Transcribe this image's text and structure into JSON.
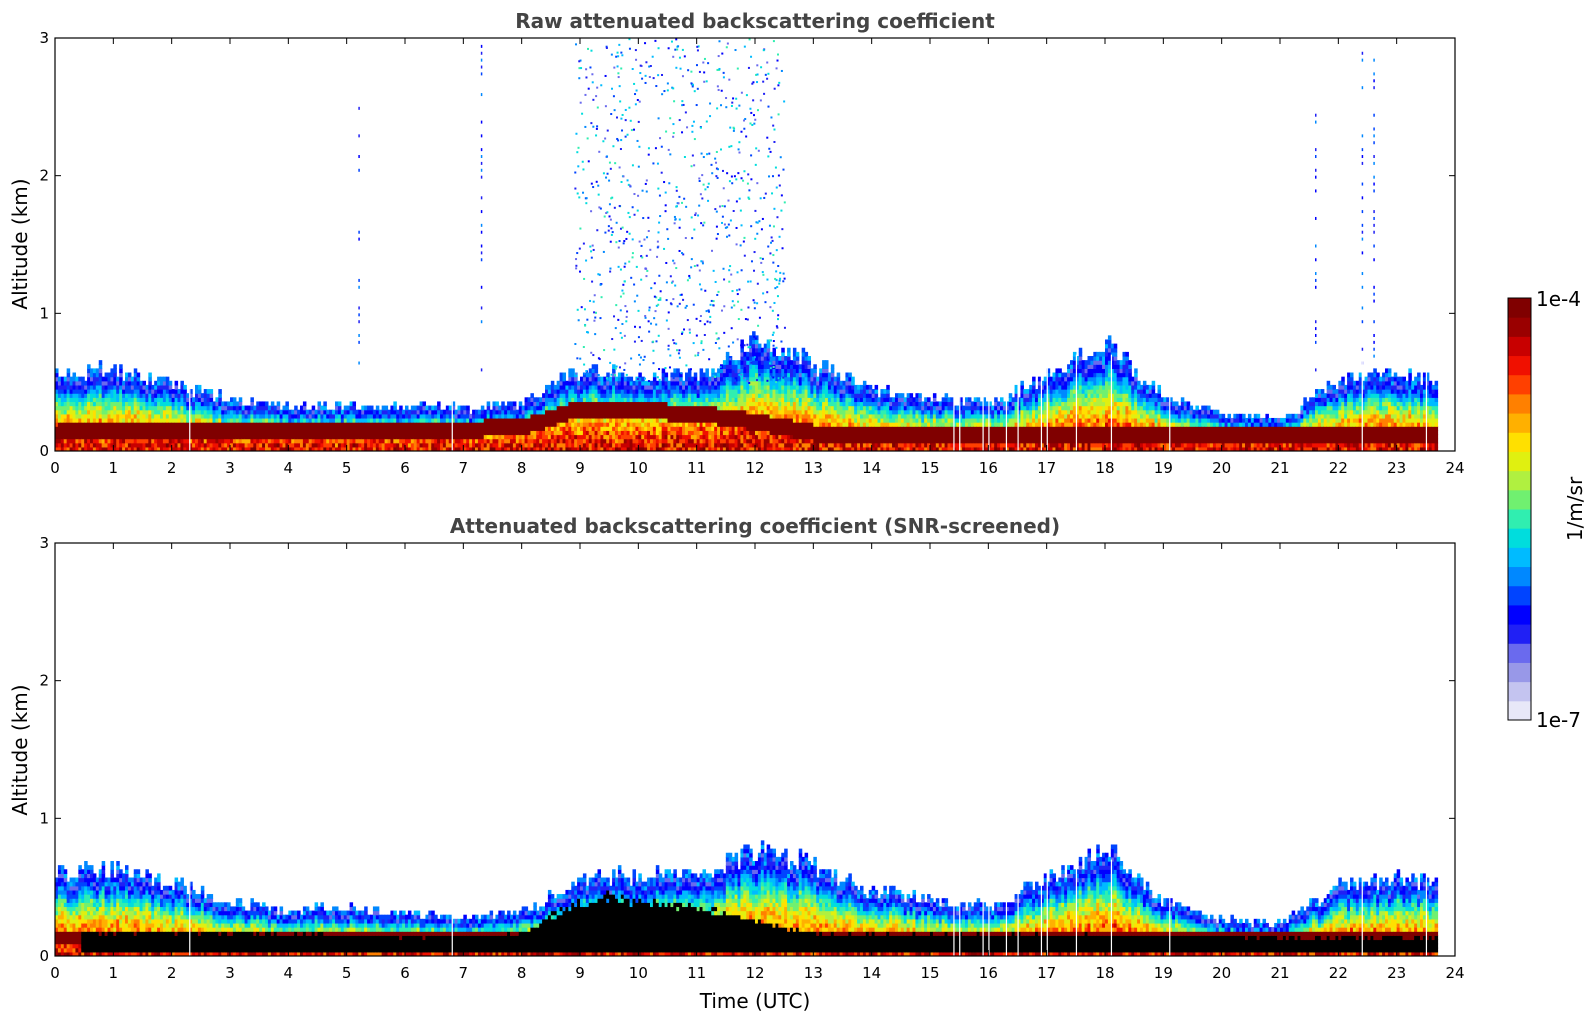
{
  "chart_data": [
    {
      "type": "heatmap",
      "title": "Raw attenuated backscattering coefficient",
      "xlabel": "",
      "ylabel": "Altitude (km)",
      "xlim": [
        0,
        24
      ],
      "ylim": [
        0,
        3
      ],
      "xticks": [
        "0",
        "1",
        "2",
        "3",
        "4",
        "5",
        "6",
        "7",
        "8",
        "9",
        "10",
        "11",
        "12",
        "13",
        "14",
        "15",
        "16",
        "17",
        "18",
        "19",
        "20",
        "21",
        "22",
        "23",
        "24"
      ],
      "yticks": [
        "0",
        "1",
        "2",
        "3"
      ],
      "data_end_hour": 23.7,
      "layer_top_km": [
        [
          0,
          0.55
        ],
        [
          1,
          0.58
        ],
        [
          2,
          0.48
        ],
        [
          3,
          0.36
        ],
        [
          4,
          0.3
        ],
        [
          5,
          0.32
        ],
        [
          6,
          0.32
        ],
        [
          7,
          0.3
        ],
        [
          8,
          0.33
        ],
        [
          9,
          0.58
        ],
        [
          10,
          0.56
        ],
        [
          11,
          0.52
        ],
        [
          12,
          0.8
        ],
        [
          13,
          0.62
        ],
        [
          14,
          0.42
        ],
        [
          15,
          0.37
        ],
        [
          16,
          0.32
        ],
        [
          17,
          0.55
        ],
        [
          18,
          0.78
        ],
        [
          19,
          0.38
        ],
        [
          20,
          0.25
        ],
        [
          21,
          0.22
        ],
        [
          22,
          0.5
        ],
        [
          23,
          0.55
        ],
        [
          23.7,
          0.5
        ]
      ],
      "core_layer_km": [
        [
          0,
          0.12
        ],
        [
          2,
          0.13
        ],
        [
          4,
          0.14
        ],
        [
          6,
          0.13
        ],
        [
          8,
          0.16
        ],
        [
          9,
          0.3
        ],
        [
          10,
          0.28
        ],
        [
          11,
          0.26
        ],
        [
          12,
          0.2
        ],
        [
          13,
          0.12
        ],
        [
          14,
          0.1
        ],
        [
          16,
          0.1
        ],
        [
          18,
          0.1
        ],
        [
          20,
          0.1
        ],
        [
          22,
          0.1
        ],
        [
          23.7,
          0.1
        ]
      ],
      "noise_region_hours": [
        8.9,
        12.5
      ]
    },
    {
      "type": "heatmap",
      "title": "Attenuated backscattering coefficient (SNR-screened)",
      "xlabel": "Time (UTC)",
      "ylabel": "Altitude (km)",
      "xlim": [
        0,
        24
      ],
      "ylim": [
        0,
        3
      ],
      "xticks": [
        "0",
        "1",
        "2",
        "3",
        "4",
        "5",
        "6",
        "7",
        "8",
        "9",
        "10",
        "11",
        "12",
        "13",
        "14",
        "15",
        "16",
        "17",
        "18",
        "19",
        "20",
        "21",
        "22",
        "23",
        "24"
      ],
      "yticks": [
        "0",
        "1",
        "2",
        "3"
      ],
      "data_end_hour": 23.7,
      "layer_top_km": [
        [
          0,
          0.58
        ],
        [
          1,
          0.62
        ],
        [
          2,
          0.52
        ],
        [
          3,
          0.38
        ],
        [
          4,
          0.32
        ],
        [
          5,
          0.33
        ],
        [
          6,
          0.3
        ],
        [
          7,
          0.26
        ],
        [
          8,
          0.3
        ],
        [
          9,
          0.55
        ],
        [
          10,
          0.58
        ],
        [
          11,
          0.55
        ],
        [
          12,
          0.78
        ],
        [
          13,
          0.65
        ],
        [
          14,
          0.45
        ],
        [
          15,
          0.4
        ],
        [
          16,
          0.34
        ],
        [
          17,
          0.55
        ],
        [
          18,
          0.78
        ],
        [
          19,
          0.38
        ],
        [
          20,
          0.25
        ],
        [
          21,
          0.22
        ],
        [
          22,
          0.5
        ],
        [
          23,
          0.55
        ],
        [
          23.7,
          0.5
        ]
      ],
      "black_layer_km": [
        [
          0.4,
          0.16
        ],
        [
          2,
          0.16
        ],
        [
          4,
          0.15
        ],
        [
          6,
          0.13
        ],
        [
          8,
          0.14
        ],
        [
          8.7,
          0.33
        ],
        [
          9.5,
          0.42
        ],
        [
          10,
          0.38
        ],
        [
          11,
          0.34
        ],
        [
          12,
          0.24
        ],
        [
          13,
          0.15
        ],
        [
          14,
          0.14
        ],
        [
          16,
          0.14
        ],
        [
          18,
          0.14
        ],
        [
          20,
          0.13
        ],
        [
          22,
          0.12
        ],
        [
          23.7,
          0.12
        ]
      ]
    }
  ],
  "colorbar": {
    "label": "1/m/sr",
    "max_label": "1e-4",
    "min_label": "1e-7",
    "colors": [
      "#e8e8f8",
      "#c4c4f0",
      "#9898e8",
      "#6a6aee",
      "#2020f5",
      "#0000ff",
      "#0044ff",
      "#0088ff",
      "#00bbff",
      "#00dddd",
      "#30eeb0",
      "#70f070",
      "#b0f040",
      "#e0f010",
      "#ffe000",
      "#ffb000",
      "#ff8000",
      "#ff4000",
      "#f01000",
      "#c80000",
      "#9a0000",
      "#800000"
    ]
  }
}
